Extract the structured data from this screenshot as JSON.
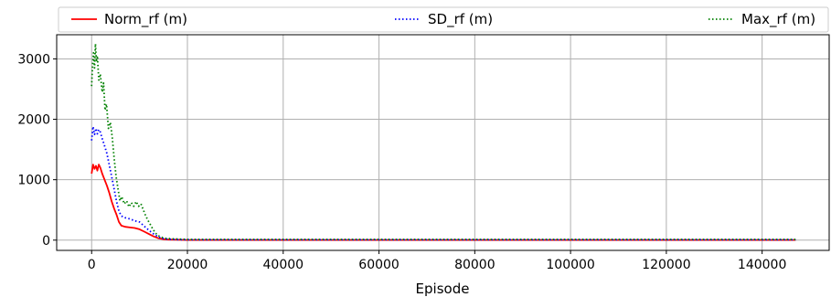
{
  "chart_data": {
    "type": "line",
    "title": "",
    "xlabel": "Episode",
    "ylabel": "",
    "xlim": [
      -7300,
      154000
    ],
    "ylim": [
      -170,
      3400
    ],
    "xticks": [
      0,
      20000,
      40000,
      60000,
      80000,
      100000,
      120000,
      140000
    ],
    "yticks": [
      0,
      1000,
      2000,
      3000
    ],
    "xtick_labels": [
      "0",
      "20000",
      "40000",
      "60000",
      "80000",
      "100000",
      "120000",
      "140000"
    ],
    "ytick_labels": [
      "0",
      "1000",
      "2000",
      "3000"
    ],
    "grid": true,
    "legend_position": "top (above plot, single row)",
    "series": [
      {
        "name": "Norm_rf (m)",
        "color": "#ff0000",
        "style": "solid",
        "points": [
          [
            0,
            1100
          ],
          [
            300,
            1250
          ],
          [
            600,
            1180
          ],
          [
            900,
            1230
          ],
          [
            1200,
            1150
          ],
          [
            1500,
            1250
          ],
          [
            1800,
            1200
          ],
          [
            2200,
            1100
          ],
          [
            2700,
            1000
          ],
          [
            3200,
            900
          ],
          [
            3700,
            780
          ],
          [
            4200,
            640
          ],
          [
            4700,
            520
          ],
          [
            5200,
            420
          ],
          [
            5700,
            300
          ],
          [
            6200,
            240
          ],
          [
            7000,
            220
          ],
          [
            8000,
            210
          ],
          [
            9000,
            200
          ],
          [
            10000,
            180
          ],
          [
            11000,
            140
          ],
          [
            12000,
            100
          ],
          [
            13000,
            60
          ],
          [
            14000,
            30
          ],
          [
            15000,
            15
          ],
          [
            16000,
            8
          ],
          [
            18000,
            5
          ],
          [
            20000,
            3
          ],
          [
            147000,
            3
          ]
        ]
      },
      {
        "name": "SD_rf (m)",
        "color": "#0000ff",
        "style": "dotted",
        "points": [
          [
            0,
            1650
          ],
          [
            300,
            1880
          ],
          [
            600,
            1750
          ],
          [
            900,
            1850
          ],
          [
            1200,
            1760
          ],
          [
            1500,
            1830
          ],
          [
            1800,
            1790
          ],
          [
            2200,
            1680
          ],
          [
            2700,
            1560
          ],
          [
            3200,
            1430
          ],
          [
            3700,
            1240
          ],
          [
            4200,
            1050
          ],
          [
            4700,
            840
          ],
          [
            5200,
            640
          ],
          [
            5700,
            480
          ],
          [
            6200,
            400
          ],
          [
            7000,
            370
          ],
          [
            8000,
            350
          ],
          [
            9000,
            320
          ],
          [
            10000,
            300
          ],
          [
            11000,
            230
          ],
          [
            12000,
            160
          ],
          [
            13000,
            100
          ],
          [
            14000,
            50
          ],
          [
            15000,
            25
          ],
          [
            16000,
            15
          ],
          [
            18000,
            8
          ],
          [
            20000,
            5
          ],
          [
            147000,
            5
          ]
        ]
      },
      {
        "name": "Max_rf (m)",
        "color": "#008000",
        "style": "dotted",
        "points": [
          [
            0,
            2550
          ],
          [
            200,
            2900
          ],
          [
            400,
            3100
          ],
          [
            600,
            2850
          ],
          [
            800,
            3250
          ],
          [
            1000,
            2950
          ],
          [
            1200,
            3050
          ],
          [
            1500,
            2650
          ],
          [
            1800,
            2750
          ],
          [
            2200,
            2450
          ],
          [
            2500,
            2600
          ],
          [
            2800,
            2150
          ],
          [
            3100,
            2250
          ],
          [
            3500,
            1850
          ],
          [
            3900,
            1950
          ],
          [
            4300,
            1700
          ],
          [
            4700,
            1350
          ],
          [
            5100,
            1050
          ],
          [
            5500,
            850
          ],
          [
            5900,
            650
          ],
          [
            6300,
            720
          ],
          [
            6800,
            600
          ],
          [
            7300,
            650
          ],
          [
            7800,
            550
          ],
          [
            8300,
            620
          ],
          [
            8800,
            560
          ],
          [
            9300,
            640
          ],
          [
            9800,
            560
          ],
          [
            10300,
            600
          ],
          [
            10800,
            500
          ],
          [
            11300,
            400
          ],
          [
            11800,
            320
          ],
          [
            12300,
            250
          ],
          [
            12800,
            180
          ],
          [
            13300,
            120
          ],
          [
            13800,
            80
          ],
          [
            14500,
            50
          ],
          [
            15500,
            30
          ],
          [
            17000,
            20
          ],
          [
            20000,
            12
          ],
          [
            147000,
            12
          ]
        ]
      }
    ]
  }
}
